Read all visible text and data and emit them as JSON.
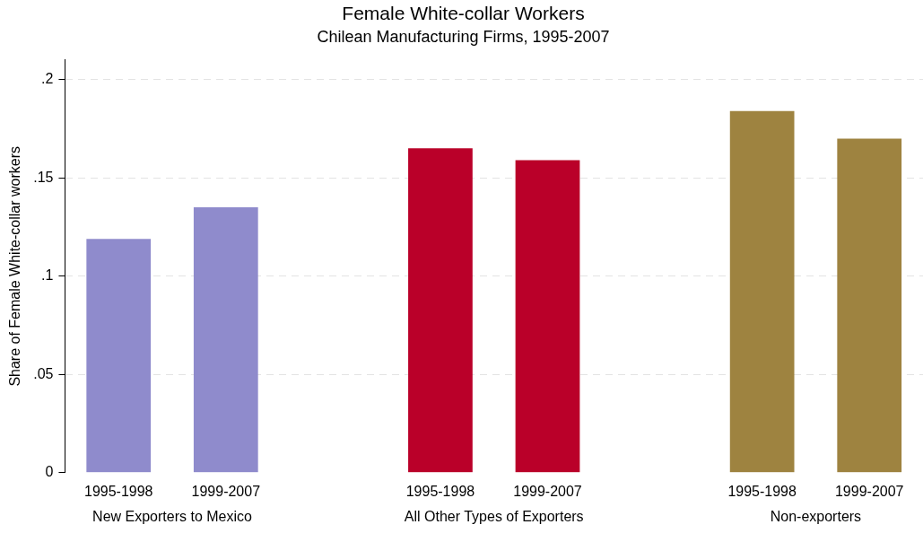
{
  "chart_data": {
    "type": "bar",
    "title": "Female White-collar Workers",
    "subtitle": "Chilean Manufacturing Firms, 1995-2007",
    "ylabel": "Share of Female White-collar workers",
    "categories": [
      "1995-1998",
      "1999-2007",
      null,
      "1995-1998",
      "1999-2007",
      null,
      "1995-1998",
      "1999-2007"
    ],
    "values": [
      0.119,
      0.135,
      null,
      0.165,
      0.159,
      null,
      0.184,
      0.17
    ],
    "colors": [
      "#8f8bcc",
      "#8f8bcc",
      "#8f8bcc",
      "#ba0029",
      "#ba0029",
      "#ba0029",
      "#9e8340",
      "#9e8340"
    ],
    "ylim": [
      0,
      0.21
    ],
    "yticks": [
      {
        "value": 0,
        "label": "0"
      },
      {
        "value": 0.05,
        "label": ".05"
      },
      {
        "value": 0.1,
        "label": ".1"
      },
      {
        "value": 0.15,
        "label": ".15"
      },
      {
        "value": 0.2,
        "label": ".2"
      }
    ],
    "grid": "y",
    "annotations": [
      "New Exporters to Mexico",
      "All Other Types of Exporters",
      "Non-exporters"
    ]
  }
}
